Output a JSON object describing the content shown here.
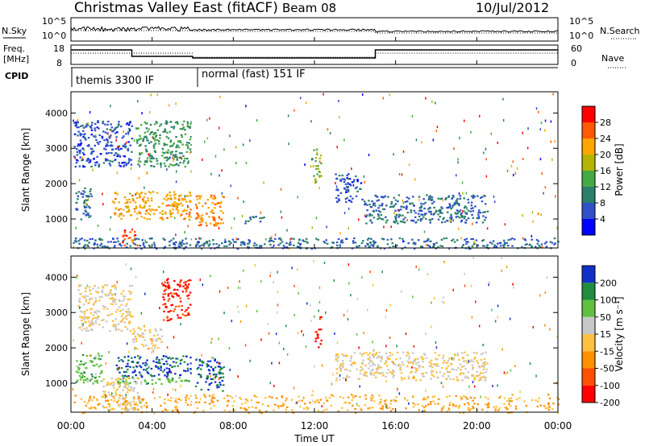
{
  "header": {
    "title": "Christmas Valley East (fitACF)",
    "beam": "Beam 08",
    "date": "10/Jul/2012"
  },
  "noise_panel": {
    "left_label": "N.Sky",
    "right_label": "N.Search",
    "ticks": [
      "10^5",
      "10^0"
    ]
  },
  "freq_panel": {
    "left_label_1": "Freq.",
    "left_label_2": "[MHz]",
    "left_ticks": [
      "18",
      "8"
    ],
    "right_label": "Nave",
    "right_ticks": [
      "60",
      "0"
    ]
  },
  "cpid": {
    "label": "CPID",
    "segments": [
      "themis 3300 IF",
      "normal (fast) 151 IF"
    ]
  },
  "axes": {
    "xlabel": "Time UT",
    "xticks": [
      "00:00",
      "04:00",
      "08:00",
      "12:00",
      "16:00",
      "20:00",
      "00:00"
    ],
    "ylabel": "Slant Range [km]",
    "yticks": [
      "4000",
      "3000",
      "2000",
      "1000"
    ]
  },
  "power_scale": {
    "label": "Power [dB]",
    "ticks": [
      "28",
      "24",
      "20",
      "16",
      "12",
      "8",
      "4"
    ],
    "colors": [
      "#ff0000",
      "#ff5a00",
      "#ffa500",
      "#b4b400",
      "#44aa44",
      "#2a7f6a",
      "#3050c8",
      "#0000ff"
    ]
  },
  "velocity_scale": {
    "label": "Velocity [m s⁻¹]",
    "ticks": [
      "200",
      "100",
      "50",
      "15",
      "-15",
      "-50",
      "-100",
      "-200"
    ],
    "colors": [
      "#1030c8",
      "#208c40",
      "#60c040",
      "#c8c8c8",
      "#ffc040",
      "#ff9000",
      "#ff5000",
      "#ff0000"
    ]
  },
  "chart_data": {
    "type": "heatmap",
    "title": "Christmas Valley East (fitACF)",
    "xlabel": "Time UT",
    "ylabel": "Slant Range [km]",
    "xlim": [
      0,
      24
    ],
    "ylim": [
      180,
      4600
    ],
    "panels": [
      {
        "name": "Power",
        "unit": "dB",
        "color_range": [
          0,
          32
        ],
        "regions": [
          {
            "t": [
              0.1,
              3.0
            ],
            "r": [
              2500,
              3800
            ],
            "v": 6
          },
          {
            "t": [
              3.2,
              5.9
            ],
            "r": [
              2500,
              3800
            ],
            "v": 12
          },
          {
            "t": [
              0.2,
              1.0
            ],
            "r": [
              1000,
              1900
            ],
            "v": 8
          },
          {
            "t": [
              2.0,
              5.9
            ],
            "r": [
              1000,
              1800
            ],
            "v": 22
          },
          {
            "t": [
              2.5,
              3.3
            ],
            "r": [
              250,
              700
            ],
            "v": 26
          },
          {
            "t": [
              6.1,
              7.5
            ],
            "r": [
              800,
              1700
            ],
            "v": 24
          },
          {
            "t": [
              8.5,
              9.5
            ],
            "r": [
              900,
              1100
            ],
            "v": 8
          },
          {
            "t": [
              11.9,
              12.3
            ],
            "r": [
              2000,
              3000
            ],
            "v": 16
          },
          {
            "t": [
              13.0,
              14.3
            ],
            "r": [
              1500,
              2300
            ],
            "v": 6
          },
          {
            "t": [
              14.3,
              20.5
            ],
            "r": [
              900,
              1700
            ],
            "v": 8
          },
          {
            "t": [
              0.0,
              24.0
            ],
            "r": [
              180,
              480
            ],
            "v": 8
          }
        ]
      },
      {
        "name": "Velocity",
        "unit": "m s-1",
        "color_range": [
          -250,
          250
        ],
        "regions": [
          {
            "t": [
              0.3,
              3.0
            ],
            "r": [
              2500,
              3800
            ],
            "v": 0
          },
          {
            "t": [
              4.5,
              5.9
            ],
            "r": [
              2800,
              4000
            ],
            "v": -200
          },
          {
            "t": [
              3.0,
              4.5
            ],
            "r": [
              2000,
              2600
            ],
            "v": -20
          },
          {
            "t": [
              0.2,
              1.5
            ],
            "r": [
              1000,
              1900
            ],
            "v": 100
          },
          {
            "t": [
              2.2,
              5.9
            ],
            "r": [
              1200,
              1800
            ],
            "v": 200
          },
          {
            "t": [
              2.2,
              5.9
            ],
            "r": [
              1000,
              1200
            ],
            "v": 100
          },
          {
            "t": [
              1.5,
              3.5
            ],
            "r": [
              250,
              1200
            ],
            "v": 0
          },
          {
            "t": [
              6.1,
              7.5
            ],
            "r": [
              800,
              1700
            ],
            "v": 200
          },
          {
            "t": [
              12.0,
              12.3
            ],
            "r": [
              2000,
              2900
            ],
            "v": -200
          },
          {
            "t": [
              13.0,
              20.5
            ],
            "r": [
              1100,
              1900
            ],
            "v": 0
          },
          {
            "t": [
              0.0,
              24.0
            ],
            "r": [
              180,
              700
            ],
            "v": -60
          }
        ]
      }
    ]
  }
}
